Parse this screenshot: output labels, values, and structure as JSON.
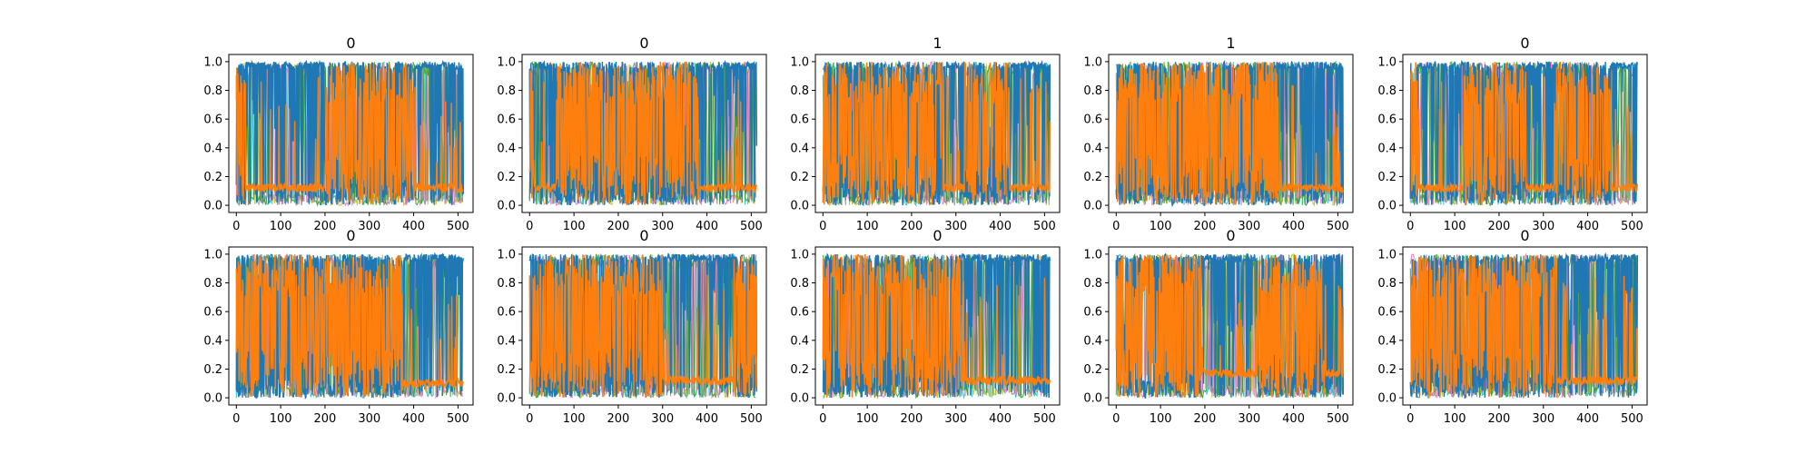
{
  "colors": {
    "blue": "#1f77b4",
    "orange": "#ff7f0e",
    "cyan": "#17becf",
    "olive": "#bcbd22",
    "gray": "#7f7f7f",
    "pink": "#e377c2",
    "green": "#2ca02c"
  },
  "chart_data": [
    {
      "type": "line",
      "title": "0",
      "xlim": [
        -17,
        534
      ],
      "ylim": [
        -0.05,
        1.05
      ],
      "xticks": [
        "0",
        "100",
        "200",
        "300",
        "400",
        "500"
      ],
      "yticks": [
        "0.0",
        "0.2",
        "0.4",
        "0.6",
        "0.8",
        "1.0"
      ],
      "series": [
        {
          "color": "blue",
          "level": 0.95
        },
        {
          "color": "orange",
          "level": 0.12
        }
      ],
      "orange_high_ranges": [
        [
          0,
          20
        ],
        [
          200,
          400
        ]
      ]
    },
    {
      "type": "line",
      "title": "0",
      "xlim": [
        -17,
        534
      ],
      "ylim": [
        -0.05,
        1.05
      ],
      "xticks": [
        "0",
        "100",
        "200",
        "300",
        "400",
        "500"
      ],
      "yticks": [
        "0.0",
        "0.2",
        "0.4",
        "0.6",
        "0.8",
        "1.0"
      ],
      "series": [
        {
          "color": "blue",
          "level": 0.95
        },
        {
          "color": "orange",
          "level": 0.12
        }
      ],
      "orange_high_ranges": [
        [
          0,
          10
        ],
        [
          60,
          380
        ]
      ]
    },
    {
      "type": "line",
      "title": "1",
      "xlim": [
        -17,
        534
      ],
      "ylim": [
        -0.05,
        1.05
      ],
      "xticks": [
        "0",
        "100",
        "200",
        "300",
        "400",
        "500"
      ],
      "yticks": [
        "0.0",
        "0.2",
        "0.4",
        "0.6",
        "0.8",
        "1.0"
      ],
      "series": [
        {
          "color": "blue",
          "level": 0.95
        },
        {
          "color": "orange",
          "level": 0.12
        }
      ],
      "orange_high_ranges": [
        [
          0,
          270
        ],
        [
          320,
          420
        ]
      ]
    },
    {
      "type": "line",
      "title": "1",
      "xlim": [
        -17,
        534
      ],
      "ylim": [
        -0.05,
        1.05
      ],
      "xticks": [
        "0",
        "100",
        "200",
        "300",
        "400",
        "500"
      ],
      "yticks": [
        "0.0",
        "0.2",
        "0.4",
        "0.6",
        "0.8",
        "1.0"
      ],
      "series": [
        {
          "color": "blue",
          "level": 0.95
        },
        {
          "color": "orange",
          "level": 0.12
        }
      ],
      "orange_high_ranges": [
        [
          0,
          365
        ]
      ]
    },
    {
      "type": "line",
      "title": "0",
      "xlim": [
        -17,
        534
      ],
      "ylim": [
        -0.05,
        1.05
      ],
      "xticks": [
        "0",
        "100",
        "200",
        "300",
        "400",
        "500"
      ],
      "yticks": [
        "0.0",
        "0.2",
        "0.4",
        "0.6",
        "0.8",
        "1.0"
      ],
      "series": [
        {
          "color": "blue",
          "level": 0.95
        },
        {
          "color": "orange",
          "level": 0.12
        }
      ],
      "orange_high_ranges": [
        [
          0,
          15
        ],
        [
          120,
          260
        ],
        [
          330,
          450
        ]
      ]
    },
    {
      "type": "line",
      "title": "0",
      "xlim": [
        -17,
        534
      ],
      "ylim": [
        -0.05,
        1.05
      ],
      "xticks": [
        "0",
        "100",
        "200",
        "300",
        "400",
        "500"
      ],
      "yticks": [
        "0.0",
        "0.2",
        "0.4",
        "0.6",
        "0.8",
        "1.0"
      ],
      "series": [
        {
          "color": "blue",
          "level": 0.95
        },
        {
          "color": "orange",
          "level": 0.1
        }
      ],
      "orange_high_ranges": [
        [
          0,
          375
        ]
      ]
    },
    {
      "type": "line",
      "title": "0",
      "xlim": [
        -17,
        534
      ],
      "ylim": [
        -0.05,
        1.05
      ],
      "xticks": [
        "0",
        "100",
        "200",
        "300",
        "400",
        "500"
      ],
      "yticks": [
        "0.0",
        "0.2",
        "0.4",
        "0.6",
        "0.8",
        "1.0"
      ],
      "series": [
        {
          "color": "blue",
          "level": 0.95
        },
        {
          "color": "orange",
          "level": 0.12
        }
      ],
      "orange_high_ranges": [
        [
          0,
          300
        ],
        [
          460,
          520
        ]
      ]
    },
    {
      "type": "line",
      "title": "0",
      "xlim": [
        -17,
        534
      ],
      "ylim": [
        -0.05,
        1.05
      ],
      "xticks": [
        "0",
        "100",
        "200",
        "300",
        "400",
        "500"
      ],
      "yticks": [
        "0.0",
        "0.2",
        "0.4",
        "0.6",
        "0.8",
        "1.0"
      ],
      "series": [
        {
          "color": "blue",
          "level": 0.95
        },
        {
          "color": "orange",
          "level": 0.12
        }
      ],
      "orange_high_ranges": [
        [
          0,
          310
        ]
      ]
    },
    {
      "type": "line",
      "title": "0",
      "xlim": [
        -17,
        534
      ],
      "ylim": [
        -0.05,
        1.05
      ],
      "xticks": [
        "0",
        "100",
        "200",
        "300",
        "400",
        "500"
      ],
      "yticks": [
        "0.0",
        "0.2",
        "0.4",
        "0.6",
        "0.8",
        "1.0"
      ],
      "series": [
        {
          "color": "blue",
          "level": 0.95
        },
        {
          "color": "orange",
          "level": 0.17
        }
      ],
      "orange_high_ranges": [
        [
          0,
          190
        ],
        [
          320,
          470
        ]
      ]
    },
    {
      "type": "line",
      "title": "0",
      "xlim": [
        -17,
        534
      ],
      "ylim": [
        -0.05,
        1.05
      ],
      "xticks": [
        "0",
        "100",
        "200",
        "300",
        "400",
        "500"
      ],
      "yticks": [
        "0.0",
        "0.2",
        "0.4",
        "0.6",
        "0.8",
        "1.0"
      ],
      "series": [
        {
          "color": "blue",
          "level": 0.95
        },
        {
          "color": "orange",
          "level": 0.12
        }
      ],
      "orange_high_ranges": [
        [
          0,
          330
        ]
      ]
    }
  ]
}
